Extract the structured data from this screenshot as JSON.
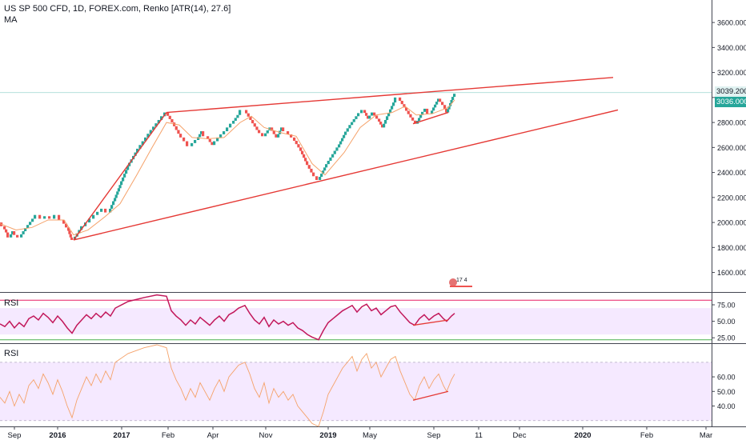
{
  "header": {
    "symbol_line": "US SP 500 CFD, 1D, FOREX.com, Renko [ATR(14), 27.6]",
    "ma_label": "MA"
  },
  "badge": {
    "text": "17 4"
  },
  "price_tags": {
    "upper": "3039.200",
    "current": "3036.000"
  },
  "colors": {
    "up": "#26a69a",
    "down": "#ef5350",
    "ma": "#f5a26a",
    "trendline": "#e53935",
    "rsi1_line": "#c2185b",
    "rsi2_line": "#f5a26a",
    "rsi_band": "#f3e5ff",
    "rsi_band_line": "#e91e63",
    "current_tag_bg": "#26a69a",
    "upper_tag_bg": "#e0f2f1"
  },
  "chart_data": [
    {
      "type": "renko",
      "pane": "price",
      "y_ticks": [
        1600,
        1800,
        2000,
        2200,
        2400,
        2600,
        2800,
        3000,
        3200,
        3400,
        3600
      ],
      "y_tick_labels": [
        "1600.000",
        "1800.000",
        "2000.000",
        "2200.000",
        "2400.000",
        "2600.000",
        "2800.000",
        "3000.000",
        "3200.000",
        "3400.000",
        "3600.000"
      ],
      "ylim": [
        1450,
        3780
      ],
      "x_tick_labels": [
        "Sep",
        "2016",
        "2017",
        "Feb",
        "Apr",
        "Nov",
        "2019",
        "May",
        "Sep",
        "11",
        "Dec",
        "2020",
        "Feb",
        "Mar"
      ],
      "path": [
        [
          0,
          2000
        ],
        [
          4,
          1970
        ],
        [
          8,
          1920
        ],
        [
          12,
          1880
        ],
        [
          16,
          1930
        ],
        [
          20,
          1900
        ],
        [
          25,
          1880
        ],
        [
          30,
          1930
        ],
        [
          36,
          1980
        ],
        [
          42,
          2030
        ],
        [
          48,
          2060
        ],
        [
          54,
          2030
        ],
        [
          60,
          2050
        ],
        [
          66,
          2030
        ],
        [
          72,
          2060
        ],
        [
          78,
          2020
        ],
        [
          84,
          1960
        ],
        [
          88,
          1880
        ],
        [
          92,
          1860
        ],
        [
          100,
          1940
        ],
        [
          110,
          2000
        ],
        [
          120,
          2060
        ],
        [
          130,
          2110
        ],
        [
          136,
          2080
        ],
        [
          142,
          2170
        ],
        [
          150,
          2300
        ],
        [
          160,
          2450
        ],
        [
          170,
          2560
        ],
        [
          180,
          2650
        ],
        [
          190,
          2740
        ],
        [
          200,
          2820
        ],
        [
          208,
          2880
        ],
        [
          216,
          2800
        ],
        [
          224,
          2710
        ],
        [
          232,
          2650
        ],
        [
          238,
          2610
        ],
        [
          246,
          2660
        ],
        [
          252,
          2730
        ],
        [
          258,
          2690
        ],
        [
          266,
          2620
        ],
        [
          274,
          2680
        ],
        [
          282,
          2730
        ],
        [
          290,
          2790
        ],
        [
          298,
          2860
        ],
        [
          306,
          2900
        ],
        [
          314,
          2820
        ],
        [
          322,
          2740
        ],
        [
          330,
          2690
        ],
        [
          338,
          2760
        ],
        [
          346,
          2680
        ],
        [
          352,
          2760
        ],
        [
          358,
          2730
        ],
        [
          366,
          2680
        ],
        [
          374,
          2600
        ],
        [
          382,
          2490
        ],
        [
          390,
          2400
        ],
        [
          398,
          2340
        ],
        [
          406,
          2440
        ],
        [
          414,
          2520
        ],
        [
          422,
          2600
        ],
        [
          430,
          2700
        ],
        [
          438,
          2780
        ],
        [
          446,
          2850
        ],
        [
          454,
          2900
        ],
        [
          460,
          2830
        ],
        [
          466,
          2880
        ],
        [
          472,
          2830
        ],
        [
          478,
          2760
        ],
        [
          484,
          2850
        ],
        [
          492,
          2960
        ],
        [
          498,
          3000
        ],
        [
          506,
          2920
        ],
        [
          514,
          2840
        ],
        [
          520,
          2790
        ],
        [
          526,
          2860
        ],
        [
          532,
          2910
        ],
        [
          538,
          2870
        ],
        [
          542,
          2920
        ],
        [
          548,
          2990
        ],
        [
          554,
          2940
        ],
        [
          558,
          2880
        ],
        [
          564,
          2980
        ],
        [
          568,
          3030
        ]
      ],
      "ma": [
        [
          0,
          1990
        ],
        [
          20,
          1940
        ],
        [
          40,
          1960
        ],
        [
          60,
          2020
        ],
        [
          80,
          2020
        ],
        [
          92,
          1900
        ],
        [
          110,
          1940
        ],
        [
          130,
          2040
        ],
        [
          150,
          2150
        ],
        [
          170,
          2370
        ],
        [
          190,
          2600
        ],
        [
          208,
          2800
        ],
        [
          224,
          2780
        ],
        [
          240,
          2680
        ],
        [
          260,
          2670
        ],
        [
          280,
          2680
        ],
        [
          300,
          2800
        ],
        [
          314,
          2850
        ],
        [
          330,
          2760
        ],
        [
          350,
          2720
        ],
        [
          370,
          2690
        ],
        [
          390,
          2470
        ],
        [
          406,
          2380
        ],
        [
          430,
          2560
        ],
        [
          450,
          2760
        ],
        [
          470,
          2860
        ],
        [
          490,
          2880
        ],
        [
          506,
          2930
        ],
        [
          520,
          2860
        ],
        [
          540,
          2870
        ],
        [
          560,
          2920
        ],
        [
          568,
          2980
        ]
      ],
      "trendlines": [
        {
          "points": [
            [
              92,
              1860
            ],
            [
              208,
              2880
            ]
          ]
        },
        {
          "points": [
            [
              208,
              2880
            ],
            [
              766,
              3160
            ]
          ]
        },
        {
          "points": [
            [
              92,
              1860
            ],
            [
              772,
              2900
            ]
          ]
        },
        {
          "points": [
            [
              516,
              2790
            ],
            [
              560,
              2880
            ]
          ]
        }
      ],
      "guide_level": 3039.2
    },
    {
      "type": "line",
      "pane": "rsi1",
      "name": "RSI",
      "y_ticks": [
        25,
        50,
        75
      ],
      "y_tick_labels": [
        "25.00",
        "50.00",
        "75.00"
      ],
      "ylim": [
        18,
        92
      ],
      "band": [
        30,
        70
      ],
      "band_lines": [
        82,
        22
      ],
      "values": [
        [
          0,
          46
        ],
        [
          6,
          42
        ],
        [
          12,
          50
        ],
        [
          18,
          40
        ],
        [
          24,
          48
        ],
        [
          30,
          42
        ],
        [
          36,
          54
        ],
        [
          42,
          58
        ],
        [
          48,
          52
        ],
        [
          54,
          62
        ],
        [
          60,
          56
        ],
        [
          66,
          48
        ],
        [
          72,
          58
        ],
        [
          78,
          50
        ],
        [
          84,
          40
        ],
        [
          90,
          32
        ],
        [
          96,
          44
        ],
        [
          102,
          52
        ],
        [
          108,
          60
        ],
        [
          114,
          54
        ],
        [
          120,
          62
        ],
        [
          126,
          56
        ],
        [
          132,
          64
        ],
        [
          138,
          58
        ],
        [
          144,
          70
        ],
        [
          160,
          80
        ],
        [
          180,
          86
        ],
        [
          196,
          90
        ],
        [
          208,
          88
        ],
        [
          214,
          66
        ],
        [
          220,
          58
        ],
        [
          226,
          52
        ],
        [
          232,
          44
        ],
        [
          238,
          52
        ],
        [
          244,
          46
        ],
        [
          250,
          56
        ],
        [
          256,
          50
        ],
        [
          262,
          44
        ],
        [
          268,
          52
        ],
        [
          274,
          58
        ],
        [
          280,
          50
        ],
        [
          286,
          60
        ],
        [
          292,
          64
        ],
        [
          298,
          70
        ],
        [
          306,
          74
        ],
        [
          312,
          62
        ],
        [
          318,
          52
        ],
        [
          324,
          46
        ],
        [
          330,
          56
        ],
        [
          336,
          42
        ],
        [
          342,
          52
        ],
        [
          348,
          46
        ],
        [
          354,
          50
        ],
        [
          360,
          44
        ],
        [
          366,
          48
        ],
        [
          372,
          40
        ],
        [
          378,
          36
        ],
        [
          384,
          30
        ],
        [
          390,
          26
        ],
        [
          398,
          22
        ],
        [
          404,
          36
        ],
        [
          410,
          48
        ],
        [
          416,
          54
        ],
        [
          422,
          60
        ],
        [
          428,
          66
        ],
        [
          434,
          70
        ],
        [
          440,
          74
        ],
        [
          446,
          64
        ],
        [
          452,
          72
        ],
        [
          458,
          76
        ],
        [
          464,
          66
        ],
        [
          470,
          70
        ],
        [
          476,
          60
        ],
        [
          482,
          66
        ],
        [
          488,
          72
        ],
        [
          494,
          74
        ],
        [
          500,
          64
        ],
        [
          506,
          56
        ],
        [
          512,
          48
        ],
        [
          518,
          44
        ],
        [
          524,
          54
        ],
        [
          530,
          60
        ],
        [
          536,
          52
        ],
        [
          542,
          58
        ],
        [
          548,
          62
        ],
        [
          554,
          54
        ],
        [
          558,
          50
        ],
        [
          564,
          58
        ],
        [
          568,
          62
        ]
      ],
      "divergence": [
        [
          516,
          44
        ],
        [
          560,
          52
        ]
      ]
    },
    {
      "type": "line",
      "pane": "rsi2",
      "name": "RSI",
      "y_ticks": [
        40,
        50,
        60
      ],
      "y_tick_labels": [
        "40.00",
        "50.00",
        "60.00"
      ],
      "ylim": [
        26,
        82
      ],
      "band": [
        30,
        70
      ],
      "values": [
        [
          0,
          46
        ],
        [
          6,
          42
        ],
        [
          12,
          50
        ],
        [
          18,
          40
        ],
        [
          24,
          48
        ],
        [
          30,
          42
        ],
        [
          36,
          54
        ],
        [
          42,
          58
        ],
        [
          48,
          52
        ],
        [
          54,
          62
        ],
        [
          60,
          56
        ],
        [
          66,
          48
        ],
        [
          72,
          58
        ],
        [
          78,
          50
        ],
        [
          84,
          40
        ],
        [
          90,
          32
        ],
        [
          96,
          44
        ],
        [
          102,
          52
        ],
        [
          108,
          60
        ],
        [
          114,
          54
        ],
        [
          120,
          62
        ],
        [
          126,
          56
        ],
        [
          132,
          64
        ],
        [
          138,
          58
        ],
        [
          144,
          70
        ],
        [
          160,
          76
        ],
        [
          180,
          80
        ],
        [
          196,
          82
        ],
        [
          208,
          80
        ],
        [
          214,
          66
        ],
        [
          220,
          58
        ],
        [
          226,
          52
        ],
        [
          232,
          44
        ],
        [
          238,
          52
        ],
        [
          244,
          46
        ],
        [
          250,
          56
        ],
        [
          256,
          50
        ],
        [
          262,
          44
        ],
        [
          268,
          52
        ],
        [
          274,
          58
        ],
        [
          280,
          50
        ],
        [
          286,
          60
        ],
        [
          292,
          64
        ],
        [
          298,
          68
        ],
        [
          306,
          70
        ],
        [
          312,
          62
        ],
        [
          318,
          52
        ],
        [
          324,
          46
        ],
        [
          330,
          56
        ],
        [
          336,
          42
        ],
        [
          342,
          52
        ],
        [
          348,
          46
        ],
        [
          354,
          50
        ],
        [
          360,
          44
        ],
        [
          366,
          48
        ],
        [
          372,
          40
        ],
        [
          378,
          36
        ],
        [
          384,
          32
        ],
        [
          390,
          28
        ],
        [
          398,
          26
        ],
        [
          404,
          36
        ],
        [
          410,
          48
        ],
        [
          416,
          54
        ],
        [
          422,
          60
        ],
        [
          428,
          66
        ],
        [
          434,
          70
        ],
        [
          440,
          74
        ],
        [
          446,
          64
        ],
        [
          452,
          72
        ],
        [
          458,
          76
        ],
        [
          464,
          66
        ],
        [
          470,
          70
        ],
        [
          476,
          60
        ],
        [
          482,
          66
        ],
        [
          488,
          72
        ],
        [
          494,
          74
        ],
        [
          500,
          64
        ],
        [
          506,
          56
        ],
        [
          512,
          48
        ],
        [
          518,
          44
        ],
        [
          524,
          54
        ],
        [
          530,
          60
        ],
        [
          536,
          52
        ],
        [
          542,
          58
        ],
        [
          548,
          62
        ],
        [
          554,
          54
        ],
        [
          558,
          50
        ],
        [
          564,
          58
        ],
        [
          568,
          62
        ]
      ],
      "divergence": [
        [
          516,
          44
        ],
        [
          560,
          50
        ]
      ]
    }
  ]
}
